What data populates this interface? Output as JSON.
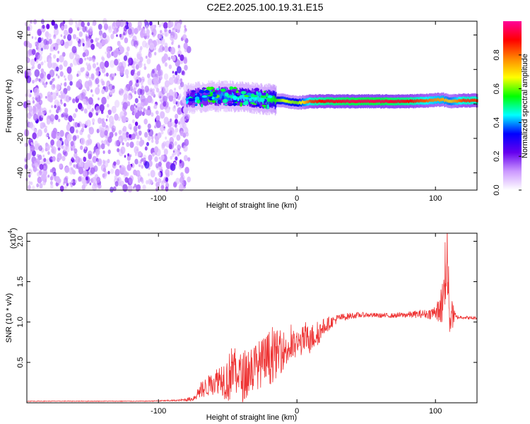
{
  "title": "C2E2.2025.100.19.31.E15",
  "chart_data": [
    {
      "type": "heatmap",
      "xlabel": "Height of straight line (km)",
      "ylabel": "Frequency (Hz)",
      "xlim": [
        -195,
        130
      ],
      "ylim": [
        -50,
        48
      ],
      "x_ticks": [
        -100,
        0,
        100
      ],
      "y_ticks": [
        40,
        20,
        0,
        -20,
        -40
      ],
      "noise_region_x": [
        -195,
        -80
      ],
      "ridge": {
        "x": [
          -80,
          -70,
          -60,
          -50,
          -40,
          -30,
          -20,
          -10,
          0,
          10,
          20,
          40,
          60,
          80,
          95,
          105,
          110,
          120,
          130
        ],
        "frequency": [
          3,
          4,
          4.5,
          4.5,
          4,
          3.5,
          2.5,
          2,
          0.5,
          1.5,
          1.5,
          1.5,
          1.5,
          1.5,
          2,
          2.5,
          1.5,
          2,
          2
        ],
        "normalized_amplitude": [
          0.3,
          0.35,
          0.4,
          0.4,
          0.45,
          0.45,
          0.5,
          0.65,
          0.6,
          0.85,
          0.9,
          0.95,
          0.95,
          0.9,
          0.8,
          0.75,
          0.7,
          0.85,
          0.85
        ]
      },
      "colorbar": {
        "label": "Normalized spectral amplitude",
        "range": [
          0.0,
          1.0
        ],
        "ticks": [
          "0.0",
          "0.2",
          "0.4",
          "0.6",
          "0.8"
        ],
        "colormap": [
          "#ffffff",
          "#cc99ff",
          "#6600ee",
          "#0000ff",
          "#00ffff",
          "#00ff00",
          "#ffff00",
          "#ff8800",
          "#ff0000",
          "#ff0099"
        ]
      }
    },
    {
      "type": "line",
      "xlabel": "Height of straight line (km)",
      "ylabel": "SNR (10 * v/v)",
      "scale_label": "(x10",
      "scale_exponent": "4",
      "xlim": [
        -195,
        130
      ],
      "ylim": [
        0,
        2.1
      ],
      "x_ticks": [
        -100,
        0,
        100
      ],
      "y_ticks": [
        "0.5",
        "1.0",
        "1.5",
        "2.0"
      ],
      "series": [
        {
          "color": "#ee3333",
          "x": [
            -195,
            -170,
            -140,
            -110,
            -85,
            -75,
            -70,
            -60,
            -55,
            -50,
            -45,
            -40,
            -35,
            -30,
            -25,
            -20,
            -15,
            -10,
            -5,
            0,
            5,
            10,
            15,
            20,
            30,
            40,
            50,
            60,
            70,
            80,
            90,
            95,
            100,
            103,
            106,
            108,
            110,
            115,
            120,
            125,
            130
          ],
          "y": [
            0.02,
            0.02,
            0.02,
            0.02,
            0.03,
            0.05,
            0.15,
            0.25,
            0.32,
            0.28,
            0.45,
            0.3,
            0.4,
            0.45,
            0.5,
            0.55,
            0.6,
            0.65,
            0.68,
            0.72,
            0.78,
            0.8,
            0.85,
            0.95,
            1.05,
            1.08,
            1.09,
            1.08,
            1.08,
            1.09,
            1.1,
            1.1,
            1.12,
            1.15,
            1.3,
            2.0,
            1.1,
            1.06,
            1.06,
            1.05,
            1.05
          ],
          "amplitude": [
            0.004,
            0.004,
            0.004,
            0.004,
            0.01,
            0.03,
            0.1,
            0.15,
            0.2,
            0.3,
            0.35,
            0.3,
            0.35,
            0.3,
            0.3,
            0.35,
            0.3,
            0.25,
            0.22,
            0.18,
            0.18,
            0.18,
            0.15,
            0.1,
            0.05,
            0.04,
            0.03,
            0.03,
            0.03,
            0.04,
            0.05,
            0.06,
            0.1,
            0.15,
            0.4,
            0.6,
            0.3,
            0.03,
            0.02,
            0.02,
            0.02
          ]
        }
      ]
    }
  ]
}
